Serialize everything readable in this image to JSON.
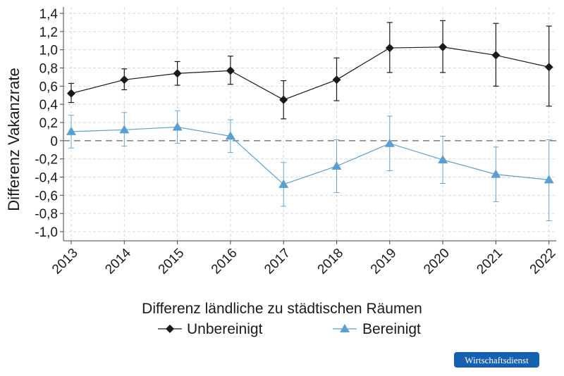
{
  "chart_data": {
    "type": "line",
    "title": "",
    "xlabel": "Differenz ländliche zu städtischen Räumen",
    "ylabel": "Differenz Vakanzrate",
    "categories": [
      "2013",
      "2014",
      "2015",
      "2016",
      "2017",
      "2018",
      "2019",
      "2020",
      "2021",
      "2022"
    ],
    "ylim": [
      -1.1,
      1.45
    ],
    "yticks": [
      1.4,
      1.2,
      1.0,
      0.8,
      0.6,
      0.4,
      0.2,
      0,
      -0.2,
      -0.4,
      -0.6,
      -0.8,
      -1.0
    ],
    "ytick_labels": [
      "1,4",
      "1,2",
      "1,0",
      "0,8",
      "0,6",
      "0,4",
      "0,2",
      "0",
      "-0,2",
      "-0,4",
      "-0,6",
      "-0,8",
      "-1,0"
    ],
    "grid": true,
    "zero_line": "dashed",
    "legend_position": "bottom",
    "series": [
      {
        "name": "Unbereinigt",
        "color": "#1a1a1a",
        "marker": "diamond",
        "values": [
          0.52,
          0.67,
          0.74,
          0.77,
          0.45,
          0.67,
          1.02,
          1.03,
          0.94,
          0.81
        ],
        "error_low": [
          0.42,
          0.56,
          0.61,
          0.62,
          0.24,
          0.44,
          0.75,
          0.75,
          0.6,
          0.38
        ],
        "error_high": [
          0.63,
          0.79,
          0.87,
          0.93,
          0.66,
          0.91,
          1.3,
          1.32,
          1.29,
          1.26
        ]
      },
      {
        "name": "Bereinigt",
        "color": "#5a9fd0",
        "marker": "triangle",
        "values": [
          0.1,
          0.12,
          0.15,
          0.05,
          -0.48,
          -0.28,
          -0.03,
          -0.21,
          -0.37,
          -0.43
        ],
        "error_low": [
          -0.08,
          -0.06,
          -0.03,
          -0.13,
          -0.72,
          -0.57,
          -0.33,
          -0.47,
          -0.67,
          -0.88
        ],
        "error_high": [
          0.28,
          0.31,
          0.33,
          0.23,
          -0.24,
          0.01,
          0.27,
          0.05,
          -0.07,
          0.01
        ]
      }
    ]
  },
  "legend": {
    "title": "Differenz ländliche zu städtischen Räumen",
    "items": [
      {
        "label": "Unbereinigt",
        "icon": "diamond-marker-icon"
      },
      {
        "label": "Bereinigt",
        "icon": "triangle-marker-icon"
      }
    ]
  },
  "badge": {
    "label": "Wirtschaftsdienst",
    "color": "#1560b0"
  }
}
